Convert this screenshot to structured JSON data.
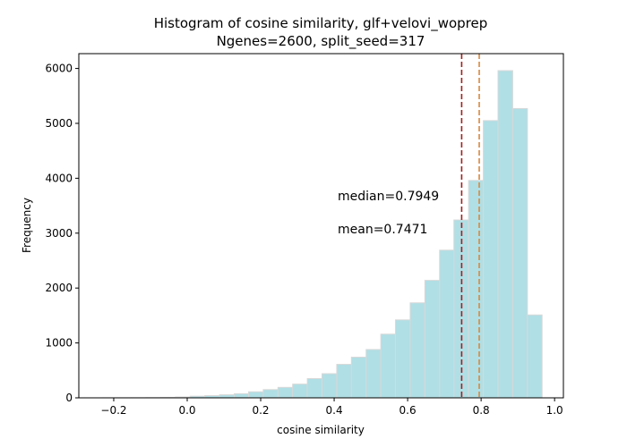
{
  "chart_data": {
    "type": "histogram",
    "title": "Histogram of cosine similarity, glf+velovi_woprep",
    "subtitle": "Ngenes=2600, split_seed=317",
    "xlabel": "cosine similarity",
    "ylabel": "Frequency",
    "bins": [
      -0.232,
      -0.192,
      -0.152,
      -0.112,
      -0.072,
      -0.032,
      0.008,
      0.048,
      0.088,
      0.128,
      0.167,
      0.207,
      0.247,
      0.287,
      0.327,
      0.367,
      0.407,
      0.447,
      0.487,
      0.527,
      0.567,
      0.607,
      0.647,
      0.687,
      0.726,
      0.766,
      0.806,
      0.846,
      0.886,
      0.926,
      0.966
    ],
    "counts": [
      1,
      2,
      3,
      5,
      8,
      15,
      30,
      40,
      55,
      75,
      110,
      150,
      190,
      250,
      350,
      440,
      610,
      740,
      880,
      1160,
      1420,
      1730,
      2140,
      2690,
      3240,
      3960,
      5050,
      5960,
      5270,
      1510
    ],
    "color": "#b0dfe5",
    "edgecolor": "#d8d8d8",
    "xlim": [
      -0.295,
      1.024
    ],
    "ylim": [
      0,
      6270
    ],
    "xticks": [
      {
        "value": -0.2,
        "label": "−0.2"
      },
      {
        "value": 0,
        "label": "0.0"
      },
      {
        "value": 0.2,
        "label": "0.2"
      },
      {
        "value": 0.4,
        "label": "0.4"
      },
      {
        "value": 0.6,
        "label": "0.6"
      },
      {
        "value": 0.8,
        "label": "0.8"
      },
      {
        "value": 1,
        "label": "1.0"
      }
    ],
    "yticks": [
      0,
      1000,
      2000,
      3000,
      4000,
      5000,
      6000
    ],
    "annotations": [
      {
        "text": "median=0.7949",
        "value": 0.7949,
        "line_color": "#d9873e",
        "text_color": "#a0522d"
      },
      {
        "text": "mean=0.7471",
        "value": 0.7471,
        "line_color": "#a81e1e",
        "text_color": "#c02020"
      }
    ]
  }
}
